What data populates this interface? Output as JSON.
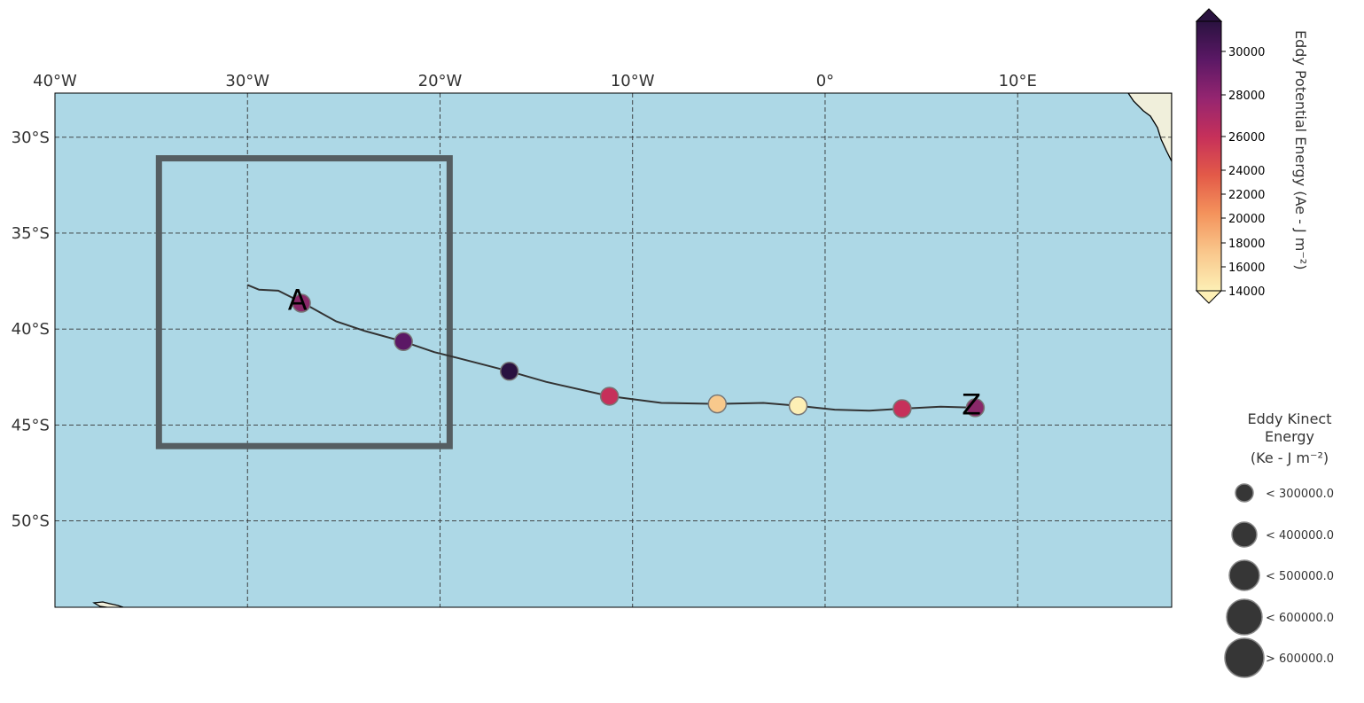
{
  "map": {
    "extent": {
      "lon_min": -40,
      "lon_max": 18,
      "lat_min": -54.5,
      "lat_max": -27.7
    },
    "lon_ticks": [
      {
        "value": -40,
        "label": "40°W"
      },
      {
        "value": -30,
        "label": "30°W"
      },
      {
        "value": -20,
        "label": "20°W"
      },
      {
        "value": -10,
        "label": "10°W"
      },
      {
        "value": 0,
        "label": "0°"
      },
      {
        "value": 10,
        "label": "10°E"
      }
    ],
    "lat_ticks": [
      {
        "value": -30,
        "label": "30°S"
      },
      {
        "value": -35,
        "label": "35°S"
      },
      {
        "value": -40,
        "label": "40°S"
      },
      {
        "value": -45,
        "label": "45°S"
      },
      {
        "value": -50,
        "label": "50°S"
      }
    ],
    "gridlines": true,
    "colors": {
      "ocean": "#add8e6",
      "land": "#f0efdb",
      "track": "#333333",
      "box": "#555e62"
    },
    "box": {
      "lon_min": -34.6,
      "lon_max": -19.5,
      "lat_min": -46.1,
      "lat_max": -31.1
    },
    "track": [
      [
        -30.0,
        -37.7
      ],
      [
        -29.4,
        -37.95
      ],
      [
        -28.4,
        -38.0
      ],
      [
        -27.0,
        -38.7
      ],
      [
        -25.4,
        -39.6
      ],
      [
        -23.9,
        -40.1
      ],
      [
        -21.9,
        -40.65
      ],
      [
        -20.3,
        -41.2
      ],
      [
        -19.1,
        -41.5
      ],
      [
        -16.4,
        -42.2
      ],
      [
        -14.5,
        -42.75
      ],
      [
        -11.2,
        -43.5
      ],
      [
        -8.5,
        -43.85
      ],
      [
        -5.6,
        -43.9
      ],
      [
        -3.2,
        -43.85
      ],
      [
        -1.4,
        -44.0
      ],
      [
        0.5,
        -44.2
      ],
      [
        2.3,
        -44.25
      ],
      [
        4.0,
        -44.15
      ],
      [
        6.0,
        -44.05
      ],
      [
        7.8,
        -44.1
      ]
    ],
    "points": [
      {
        "lon": -27.2,
        "lat": -38.65,
        "ape": 28000,
        "color": "#892869"
      },
      {
        "lon": -21.9,
        "lat": -40.65,
        "ape": 30000,
        "color": "#5b1865"
      },
      {
        "lon": -16.4,
        "lat": -42.2,
        "ape": 31000,
        "color": "#2a1240"
      },
      {
        "lon": -11.2,
        "lat": -43.5,
        "ape": 25500,
        "color": "#c6305a"
      },
      {
        "lon": -5.6,
        "lat": -43.9,
        "ape": 17500,
        "color": "#f8c98c"
      },
      {
        "lon": -1.4,
        "lat": -44.0,
        "ape": 14500,
        "color": "#fdefb5"
      },
      {
        "lon": 4.0,
        "lat": -44.15,
        "ape": 25500,
        "color": "#c6305a"
      },
      {
        "lon": 7.8,
        "lat": -44.1,
        "ape": 28500,
        "color": "#892869"
      }
    ],
    "labels": [
      {
        "text": "A",
        "lon": -27.4,
        "lat": -38.5
      },
      {
        "text": "Z",
        "lon": 7.6,
        "lat": -43.95
      }
    ]
  },
  "colorbar": {
    "title": "Eddy Potential Energy (Ae - J m⁻²)",
    "min": 14000,
    "max": 31500,
    "ticks": [
      {
        "value": 30000,
        "label": "30000"
      },
      {
        "value": 28000,
        "label": "28000"
      },
      {
        "value": 26000,
        "label": "26000"
      },
      {
        "value": 24000,
        "label": "24000"
      },
      {
        "value": 22000,
        "label": "22000"
      },
      {
        "value": 20000,
        "label": "20000"
      },
      {
        "value": 18000,
        "label": "18000"
      },
      {
        "value": 16000,
        "label": "16000"
      },
      {
        "value": 14000,
        "label": "14000"
      }
    ],
    "colormap": [
      "#fdefb5",
      "#f9c78c",
      "#f4935c",
      "#e35a48",
      "#c6305a",
      "#952570",
      "#5b1865",
      "#2a1240"
    ]
  },
  "size_legend": {
    "title_lines": [
      "Eddy Kinect",
      "Energy",
      "(Ke -  J m⁻²)"
    ],
    "marker_color": "#363636",
    "items": [
      {
        "label": "< 300000.0",
        "size_rank": 1
      },
      {
        "label": "< 400000.0",
        "size_rank": 2
      },
      {
        "label": "< 500000.0",
        "size_rank": 3
      },
      {
        "label": "< 600000.0",
        "size_rank": 4
      },
      {
        "label": "> 600000.0",
        "size_rank": 5
      }
    ]
  }
}
